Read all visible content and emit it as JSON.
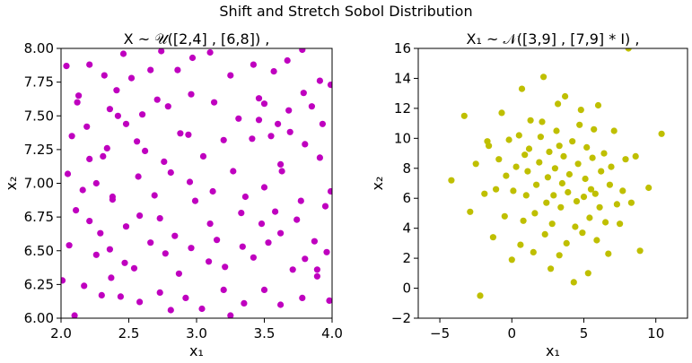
{
  "figure": {
    "suptitle": "Shift and Stretch Sobol Distribution"
  },
  "colors": {
    "left_points": "#bf00bf",
    "right_points": "#bfbf00",
    "axes": "#000000",
    "background": "#ffffff"
  },
  "chart_data": [
    {
      "type": "scatter",
      "title": "X ~ 𝒰([2,4] , [6,8])        ,",
      "xlabel": "x₁",
      "ylabel": "x₂",
      "xlim": [
        2.0,
        4.0
      ],
      "ylim": [
        6.0,
        8.0
      ],
      "xticks": [
        "2.0",
        "2.5",
        "3.0",
        "3.5",
        "4.0"
      ],
      "xtick_values": [
        2.0,
        2.5,
        3.0,
        3.5,
        4.0
      ],
      "yticks": [
        "6.00",
        "6.25",
        "6.50",
        "6.75",
        "7.00",
        "7.25",
        "7.50",
        "7.75",
        "8.00"
      ],
      "ytick_values": [
        6.0,
        6.25,
        6.5,
        6.75,
        7.0,
        7.25,
        7.5,
        7.75,
        8.0
      ],
      "grid": false,
      "series": [
        {
          "color": "#bf00bf",
          "points": [
            [
              2.04,
              7.87
            ],
            [
              2.13,
              7.65
            ],
            [
              2.21,
              7.88
            ],
            [
              2.32,
              7.8
            ],
            [
              2.41,
              7.69
            ],
            [
              2.46,
              7.96
            ],
            [
              2.52,
              7.78
            ],
            [
              2.66,
              7.84
            ],
            [
              2.74,
              7.98
            ],
            [
              2.86,
              7.84
            ],
            [
              2.97,
              7.93
            ],
            [
              3.1,
              7.97
            ],
            [
              3.25,
              7.8
            ],
            [
              3.42,
              7.88
            ],
            [
              3.57,
              7.83
            ],
            [
              3.67,
              7.91
            ],
            [
              3.78,
              7.99
            ],
            [
              3.91,
              7.76
            ],
            [
              3.99,
              7.73
            ],
            [
              2.12,
              7.6
            ],
            [
              2.19,
              7.42
            ],
            [
              2.36,
              7.55
            ],
            [
              2.42,
              7.5
            ],
            [
              2.6,
              7.51
            ],
            [
              2.71,
              7.62
            ],
            [
              2.79,
              7.57
            ],
            [
              2.96,
              7.66
            ],
            [
              3.13,
              7.6
            ],
            [
              3.31,
              7.48
            ],
            [
              3.46,
              7.63
            ],
            [
              3.5,
              7.59
            ],
            [
              3.6,
              7.44
            ],
            [
              3.68,
              7.54
            ],
            [
              3.79,
              7.67
            ],
            [
              3.85,
              7.57
            ],
            [
              2.08,
              7.35
            ],
            [
              2.21,
              7.18
            ],
            [
              2.34,
              7.26
            ],
            [
              2.48,
              7.44
            ],
            [
              2.56,
              7.31
            ],
            [
              2.62,
              7.24
            ],
            [
              2.76,
              7.16
            ],
            [
              2.88,
              7.37
            ],
            [
              2.94,
              7.36
            ],
            [
              3.05,
              7.2
            ],
            [
              3.2,
              7.32
            ],
            [
              3.41,
              7.33
            ],
            [
              3.46,
              7.47
            ],
            [
              3.55,
              7.35
            ],
            [
              3.69,
              7.38
            ],
            [
              3.8,
              7.29
            ],
            [
              3.93,
              7.44
            ],
            [
              2.05,
              7.07
            ],
            [
              2.16,
              6.95
            ],
            [
              2.26,
              7.0
            ],
            [
              2.31,
              7.2
            ],
            [
              2.38,
              6.88
            ],
            [
              2.57,
              7.05
            ],
            [
              2.69,
              6.91
            ],
            [
              2.81,
              7.08
            ],
            [
              2.95,
              7.01
            ],
            [
              3.12,
              6.94
            ],
            [
              3.27,
              7.09
            ],
            [
              3.36,
              6.9
            ],
            [
              3.5,
              6.97
            ],
            [
              3.62,
              7.14
            ],
            [
              3.63,
              7.09
            ],
            [
              3.77,
              6.87
            ],
            [
              3.91,
              7.19
            ],
            [
              3.99,
              6.94
            ],
            [
              2.11,
              6.8
            ],
            [
              2.21,
              6.72
            ],
            [
              2.29,
              6.63
            ],
            [
              2.38,
              6.9
            ],
            [
              2.48,
              6.68
            ],
            [
              2.58,
              6.76
            ],
            [
              2.73,
              6.74
            ],
            [
              2.84,
              6.61
            ],
            [
              2.99,
              6.87
            ],
            [
              3.1,
              6.7
            ],
            [
              3.15,
              6.58
            ],
            [
              3.33,
              6.78
            ],
            [
              3.48,
              6.7
            ],
            [
              3.58,
              6.79
            ],
            [
              3.62,
              6.63
            ],
            [
              3.74,
              6.73
            ],
            [
              3.87,
              6.57
            ],
            [
              3.95,
              6.83
            ],
            [
              2.06,
              6.54
            ],
            [
              2.26,
              6.47
            ],
            [
              2.36,
              6.51
            ],
            [
              2.47,
              6.41
            ],
            [
              2.54,
              6.37
            ],
            [
              2.66,
              6.56
            ],
            [
              2.77,
              6.48
            ],
            [
              2.87,
              6.33
            ],
            [
              2.96,
              6.52
            ],
            [
              3.09,
              6.42
            ],
            [
              3.21,
              6.38
            ],
            [
              3.34,
              6.53
            ],
            [
              3.42,
              6.45
            ],
            [
              3.53,
              6.56
            ],
            [
              3.71,
              6.36
            ],
            [
              3.8,
              6.44
            ],
            [
              3.89,
              6.31
            ],
            [
              3.96,
              6.49
            ],
            [
              2.01,
              6.28
            ],
            [
              2.17,
              6.24
            ],
            [
              2.3,
              6.17
            ],
            [
              2.37,
              6.3
            ],
            [
              2.44,
              6.16
            ],
            [
              2.58,
              6.12
            ],
            [
              2.73,
              6.19
            ],
            [
              2.81,
              6.06
            ],
            [
              2.92,
              6.15
            ],
            [
              3.04,
              6.07
            ],
            [
              3.2,
              6.21
            ],
            [
              3.25,
              6.02
            ],
            [
              3.35,
              6.11
            ],
            [
              3.5,
              6.21
            ],
            [
              3.62,
              6.1
            ],
            [
              3.78,
              6.15
            ],
            [
              3.89,
              6.36
            ],
            [
              3.98,
              6.13
            ],
            [
              2.1,
              6.02
            ]
          ]
        }
      ]
    },
    {
      "type": "scatter",
      "title": "X₁ ~ 𝒩([3,9] , [7,9] * I)    ,",
      "xlabel": "x₁",
      "ylabel": "x₂",
      "xlim": [
        -6.5,
        12.2
      ],
      "ylim": [
        -2,
        16
      ],
      "xticks": [
        "−5",
        "0",
        "5",
        "10"
      ],
      "xtick_values": [
        -5,
        0,
        5,
        10
      ],
      "yticks": [
        "−2",
        "0",
        "2",
        "4",
        "6",
        "8",
        "10",
        "12",
        "14",
        "16"
      ],
      "ytick_values": [
        -2,
        0,
        2,
        4,
        6,
        8,
        10,
        12,
        14,
        16
      ],
      "grid": false,
      "series": [
        {
          "color": "#bfbf00",
          "points": [
            [
              -4.2,
              7.2
            ],
            [
              -3.3,
              11.5
            ],
            [
              -2.9,
              5.1
            ],
            [
              -2.5,
              8.3
            ],
            [
              -2.2,
              -0.5
            ],
            [
              -1.9,
              6.3
            ],
            [
              -1.6,
              9.5
            ],
            [
              -1.3,
              3.4
            ],
            [
              -1.1,
              6.6
            ],
            [
              -0.9,
              8.6
            ],
            [
              -0.7,
              11.7
            ],
            [
              -0.5,
              4.8
            ],
            [
              -0.4,
              7.5
            ],
            [
              -0.2,
              9.9
            ],
            [
              0.0,
              1.9
            ],
            [
              0.1,
              6.5
            ],
            [
              0.3,
              8.1
            ],
            [
              0.5,
              10.2
            ],
            [
              0.6,
              2.9
            ],
            [
              0.7,
              13.3
            ],
            [
              0.8,
              4.5
            ],
            [
              1.0,
              6.2
            ],
            [
              1.1,
              7.8
            ],
            [
              1.2,
              9.3
            ],
            [
              1.3,
              11.2
            ],
            [
              1.5,
              2.4
            ],
            [
              1.6,
              5.0
            ],
            [
              1.7,
              6.9
            ],
            [
              1.9,
              8.4
            ],
            [
              2.0,
              10.1
            ],
            [
              2.2,
              14.1
            ],
            [
              2.3,
              3.6
            ],
            [
              2.4,
              5.7
            ],
            [
              2.5,
              7.4
            ],
            [
              2.6,
              9.1
            ],
            [
              2.7,
              1.3
            ],
            [
              2.8,
              4.3
            ],
            [
              2.9,
              6.2
            ],
            [
              3.0,
              8.0
            ],
            [
              3.1,
              10.5
            ],
            [
              3.2,
              12.3
            ],
            [
              3.3,
              2.2
            ],
            [
              3.4,
              5.4
            ],
            [
              3.5,
              7.0
            ],
            [
              3.6,
              8.8
            ],
            [
              3.7,
              12.8
            ],
            [
              3.8,
              3.0
            ],
            [
              3.9,
              6.4
            ],
            [
              4.0,
              7.6
            ],
            [
              4.2,
              9.8
            ],
            [
              4.3,
              0.4
            ],
            [
              4.4,
              4.1
            ],
            [
              4.5,
              5.8
            ],
            [
              4.6,
              8.3
            ],
            [
              4.8,
              11.9
            ],
            [
              4.9,
              3.7
            ],
            [
              5.0,
              6.1
            ],
            [
              5.1,
              7.3
            ],
            [
              5.2,
              9.4
            ],
            [
              5.3,
              1.0
            ],
            [
              5.4,
              4.7
            ],
            [
              5.5,
              6.6
            ],
            [
              5.6,
              8.7
            ],
            [
              5.7,
              10.6
            ],
            [
              5.9,
              3.2
            ],
            [
              6.0,
              12.2
            ],
            [
              6.1,
              5.4
            ],
            [
              6.2,
              7.8
            ],
            [
              6.4,
              9.0
            ],
            [
              6.5,
              4.4
            ],
            [
              6.7,
              2.3
            ],
            [
              6.8,
              6.9
            ],
            [
              6.9,
              8.1
            ],
            [
              7.1,
              10.5
            ],
            [
              7.3,
              5.6
            ],
            [
              7.5,
              4.3
            ],
            [
              7.7,
              6.5
            ],
            [
              7.9,
              8.6
            ],
            [
              8.1,
              16.0
            ],
            [
              8.3,
              5.7
            ],
            [
              8.6,
              8.8
            ],
            [
              8.9,
              2.5
            ],
            [
              9.5,
              6.7
            ],
            [
              10.4,
              10.3
            ],
            [
              -1.7,
              9.8
            ],
            [
              0.9,
              8.9
            ],
            [
              2.1,
              11.1
            ],
            [
              3.3,
              9.5
            ],
            [
              4.7,
              10.9
            ],
            [
              5.8,
              6.3
            ]
          ]
        }
      ]
    }
  ]
}
